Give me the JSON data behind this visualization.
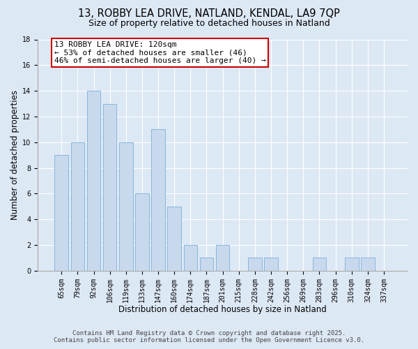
{
  "title": "13, ROBBY LEA DRIVE, NATLAND, KENDAL, LA9 7QP",
  "subtitle": "Size of property relative to detached houses in Natland",
  "xlabel": "Distribution of detached houses by size in Natland",
  "ylabel": "Number of detached properties",
  "bar_labels": [
    "65sqm",
    "79sqm",
    "92sqm",
    "106sqm",
    "119sqm",
    "133sqm",
    "147sqm",
    "160sqm",
    "174sqm",
    "187sqm",
    "201sqm",
    "215sqm",
    "228sqm",
    "242sqm",
    "256sqm",
    "269sqm",
    "283sqm",
    "296sqm",
    "310sqm",
    "324sqm",
    "337sqm"
  ],
  "bar_values": [
    9,
    10,
    14,
    13,
    10,
    6,
    11,
    5,
    2,
    1,
    2,
    0,
    1,
    1,
    0,
    0,
    1,
    0,
    1,
    1,
    0
  ],
  "bar_color": "#c8d9ee",
  "bar_edge_color": "#7bafd4",
  "ylim": [
    0,
    18
  ],
  "yticks": [
    0,
    2,
    4,
    6,
    8,
    10,
    12,
    14,
    16,
    18
  ],
  "annotation_line1": "13 ROBBY LEA DRIVE: 120sqm",
  "annotation_line2": "← 53% of detached houses are smaller (46)",
  "annotation_line3": "46% of semi-detached houses are larger (40) →",
  "annotation_box_color": "#ffffff",
  "annotation_box_edge_color": "#cc0000",
  "background_color": "#dde8f5",
  "grid_color": "#ffffff",
  "footer_line1": "Contains HM Land Registry data © Crown copyright and database right 2025.",
  "footer_line2": "Contains public sector information licensed under the Open Government Licence v3.0.",
  "title_fontsize": 10.5,
  "subtitle_fontsize": 9,
  "xlabel_fontsize": 8.5,
  "ylabel_fontsize": 8.5,
  "tick_fontsize": 7,
  "footer_fontsize": 6.5,
  "annot_fontsize": 8
}
